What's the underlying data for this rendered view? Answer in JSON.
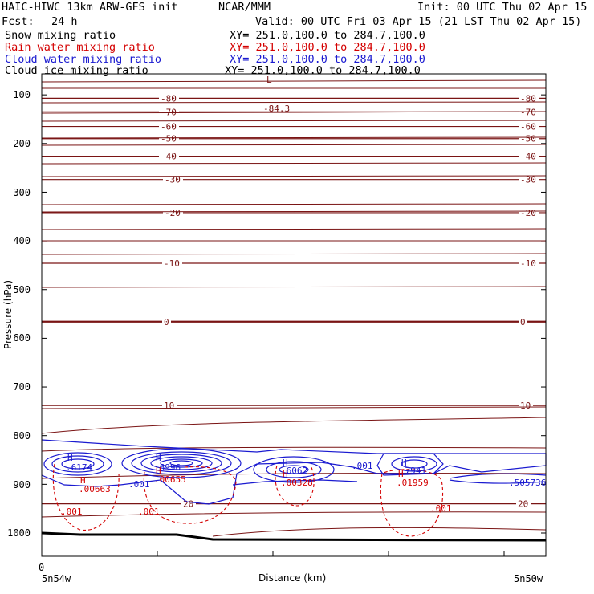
{
  "header": {
    "model": "HAIC-HIWC 13km ARW-GFS init",
    "org": "NCAR/MMM",
    "init": "Init: 00 UTC Thu 02 Apr 15",
    "fcst_label": "Fcst:",
    "fcst_value": "24 h",
    "valid": "Valid: 00 UTC Fri 03 Apr 15 (21 LST Thu 02 Apr 15)"
  },
  "fields": [
    {
      "name": "Snow mixing ratio",
      "xy": "XY= 251.0,100.0 to 284.7,100.0",
      "color": "#000000"
    },
    {
      "name": "Rain water mixing ratio",
      "xy": "XY= 251.0,100.0 to 284.7,100.0",
      "color": "#d40000"
    },
    {
      "name": "Cloud water mixing ratio",
      "xy": "XY= 251.0,100.0 to 284.7,100.0",
      "color": "#1a1ad0"
    },
    {
      "name": "Cloud ice mixing ratio",
      "xy": "XY= 251.0,100.0 to 284.7,100.0",
      "color": "#000000"
    }
  ],
  "chart_data": {
    "type": "contour cross-section",
    "ylabel": "Pressure (hPa)",
    "xlabel": "Distance (km)",
    "ylim": [
      1050,
      85
    ],
    "yticks": [
      100,
      200,
      300,
      400,
      500,
      600,
      700,
      800,
      900,
      1000
    ],
    "yticklabels": [
      "100",
      "200",
      "300",
      "400",
      "500",
      "600",
      "700",
      "800",
      "900",
      "1000"
    ],
    "x_start_label": "0",
    "x_left_label": "5n54w",
    "x_right_label": "5n50w",
    "temperature_color": "#7a1414",
    "temperature_contours": [
      {
        "value": -84.3,
        "pressure": 88,
        "label": "-84.3"
      },
      {
        "value": -80,
        "pressure": 107,
        "label": "-80"
      },
      {
        "value": -70,
        "pressure": 135,
        "label": "-70"
      },
      {
        "value": -60,
        "pressure": 165,
        "label": "-60"
      },
      {
        "value": -50,
        "pressure": 190,
        "label": "-50"
      },
      {
        "value": -40,
        "pressure": 226,
        "label": "-40"
      },
      {
        "value": -30,
        "pressure": 274,
        "label": "-30"
      },
      {
        "value": -20,
        "pressure": 342,
        "label": "-20"
      },
      {
        "value": -10,
        "pressure": 446,
        "label": "-10"
      },
      {
        "value": 0,
        "pressure": 566,
        "label": "0"
      },
      {
        "value": 10,
        "pressure": 738,
        "label": "10"
      },
      {
        "value": 20,
        "pressure": 940,
        "label": "20"
      }
    ],
    "temperature_low_label": "L",
    "annotations": {
      "cloud_water": [
        {
          "label": "H",
          "value": ".6174"
        },
        {
          "label": "H",
          "value": ".6996"
        },
        {
          "label": "H",
          "value": ".6062"
        },
        {
          "label": "H",
          "value": ".7941"
        },
        {
          "label": "H",
          "value": ".505736"
        }
      ],
      "cloud_water_contour": ".001",
      "rain_water": [
        {
          "label": "H",
          "value": ".00663"
        },
        {
          "label": "H",
          "value": ".00655"
        },
        {
          "label": "H",
          "value": ".00328"
        },
        {
          "label": "H",
          "value": ".01959"
        }
      ],
      "rain_water_contour": ".001"
    }
  }
}
